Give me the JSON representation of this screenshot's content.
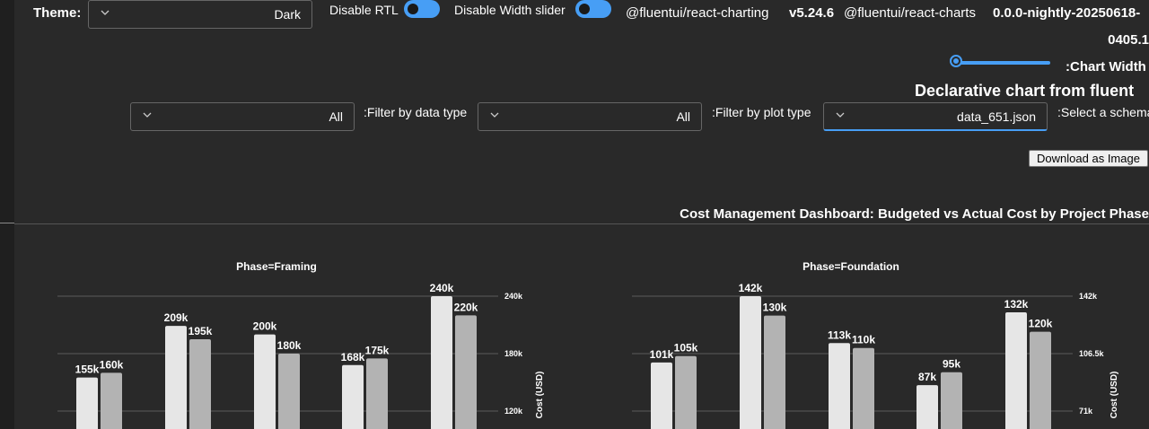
{
  "controls": {
    "theme_label": "Theme:",
    "theme_value": "Dark",
    "disable_rtl_label": "Disable RTL",
    "disable_width_slider_label": "Disable Width slider",
    "package_charting": "@fluentui/react-charting",
    "package_charting_version": "v5.24.6",
    "package_charts": "@fluentui/react-charts",
    "package_charts_version_line1": "0.0.0-nightly-20250618-",
    "package_charts_version_line2": "0405.1",
    "chart_width_label": ":Chart Width",
    "declarative_heading": "Declarative chart from fluent",
    "filter_data_type_label": ":Filter by data type",
    "filter_data_type_value": "All",
    "filter_plot_type_label": ":Filter by plot type",
    "filter_plot_type_value": "All",
    "schema_label": ":Select a schema",
    "schema_value": "data_651.json",
    "download_label": "Download as Image"
  },
  "accent_color": "#479ef5",
  "chart_data": [
    {
      "type": "bar",
      "dashboard_title": "Cost Management Dashboard: Budgeted vs Actual Cost by Project Phase",
      "title": "Phase=Framing",
      "ylabel": "Cost (USD)",
      "yticks": [
        "240k",
        "180k",
        "120k"
      ],
      "ytick_values": [
        240000,
        180000,
        120000
      ],
      "series": [
        {
          "values": [
            155000,
            209000,
            200000,
            168000,
            240000
          ],
          "labels": [
            "155k",
            "209k",
            "200k",
            "168k",
            "240k"
          ],
          "color": "#e6e6e6"
        },
        {
          "values": [
            160000,
            195000,
            180000,
            175000,
            220000
          ],
          "labels": [
            "160k",
            "195k",
            "180k",
            "175k",
            "220k"
          ],
          "color": "#b3b3b3"
        }
      ]
    },
    {
      "type": "bar",
      "title": "Phase=Foundation",
      "ylabel": "Cost (USD)",
      "yticks": [
        "142k",
        "106.5k",
        "71k"
      ],
      "ytick_values": [
        142000,
        106500,
        71000
      ],
      "series": [
        {
          "values": [
            101000,
            142000,
            113000,
            87000,
            132000
          ],
          "labels": [
            "101k",
            "142k",
            "113k",
            "87k",
            "132k"
          ],
          "color": "#e6e6e6"
        },
        {
          "values": [
            105000,
            130000,
            110000,
            95000,
            120000
          ],
          "labels": [
            "105k",
            "130k",
            "110k",
            "95k",
            "120k"
          ],
          "color": "#b3b3b3"
        }
      ]
    }
  ]
}
